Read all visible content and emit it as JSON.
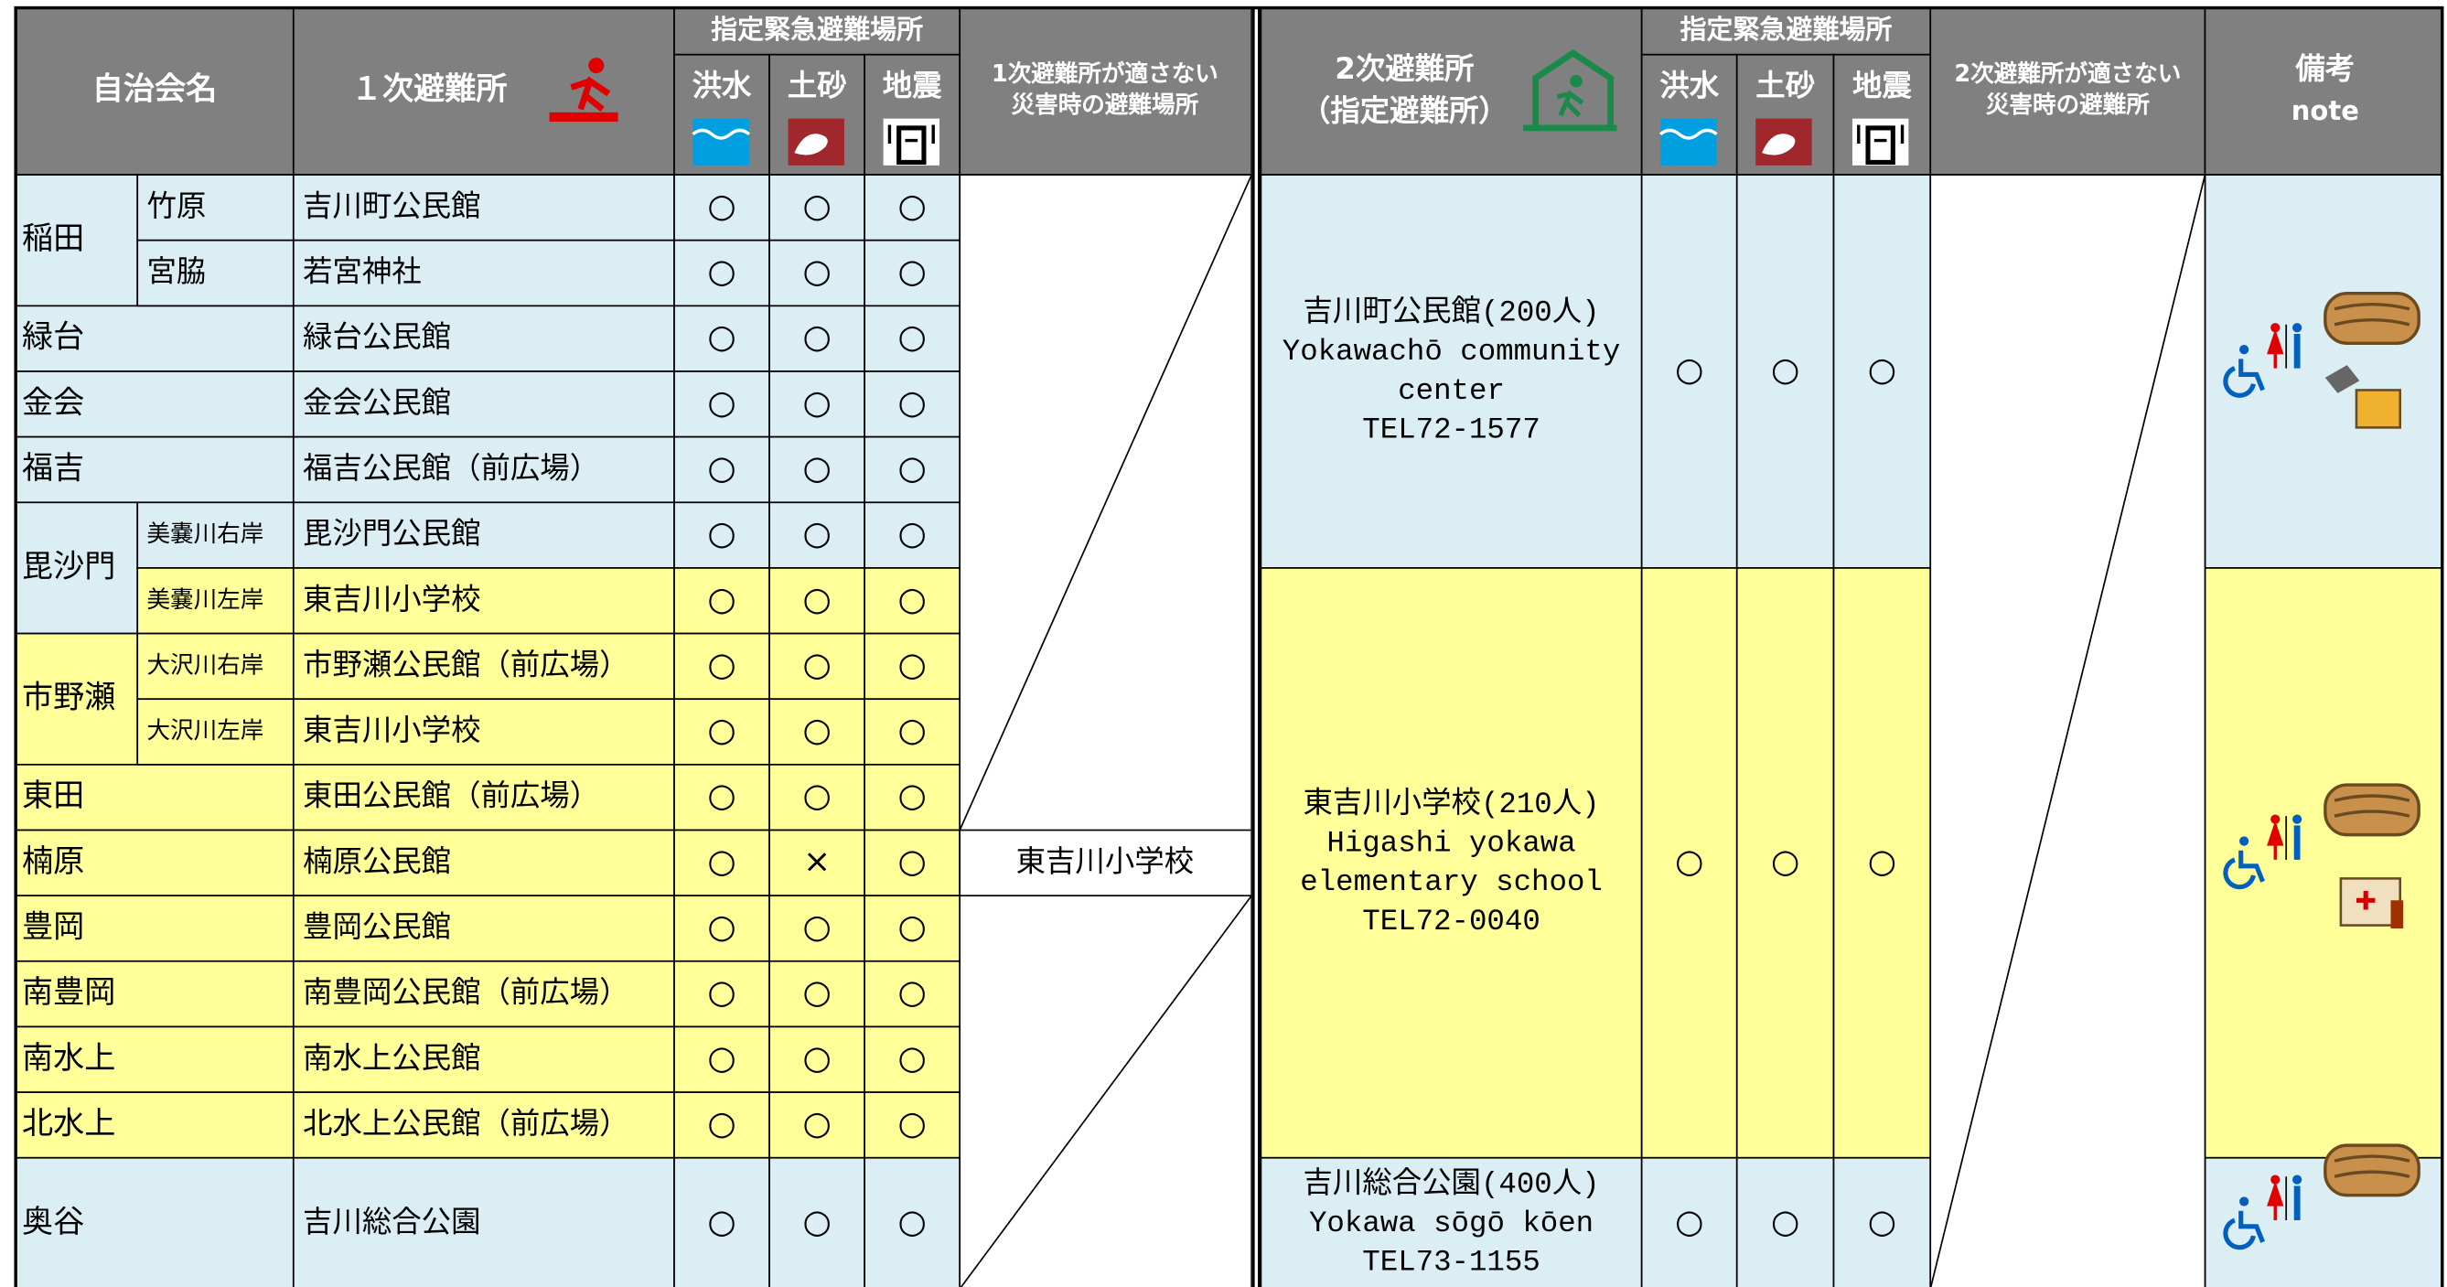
{
  "header": {
    "name": "自治会名",
    "primary": "１次避難所",
    "designated": "指定緊急避難場所",
    "hazards": [
      "洪水",
      "土砂",
      "地震"
    ],
    "primary_alt": [
      "1次避難所が適さない",
      "災害時の避難場所"
    ],
    "secondary": [
      "2次避難所",
      "（指定避難所）"
    ],
    "secondary_alt": [
      "2次避難所が適さない",
      "災害時の避難所"
    ],
    "note": [
      "備考",
      "note"
    ]
  },
  "colors": {
    "blue": "#daeef3",
    "yellow": "#ffff99",
    "header": "#808080"
  },
  "groups": [
    {
      "name": "稲田",
      "rows": [
        {
          "sub": "竹原",
          "site": "吉川町公民館",
          "marks": [
            "○",
            "○",
            "○"
          ],
          "color": "blue"
        },
        {
          "sub": "宮脇",
          "site": "若宮神社",
          "marks": [
            "○",
            "○",
            "○"
          ],
          "color": "blue"
        }
      ]
    },
    {
      "name": "緑台",
      "rows": [
        {
          "site": "緑台公民館",
          "marks": [
            "○",
            "○",
            "○"
          ],
          "color": "blue"
        }
      ]
    },
    {
      "name": "金会",
      "rows": [
        {
          "site": "金会公民館",
          "marks": [
            "○",
            "○",
            "○"
          ],
          "color": "blue"
        }
      ]
    },
    {
      "name": "福吉",
      "rows": [
        {
          "site": "福吉公民館（前広場）",
          "marks": [
            "○",
            "○",
            "○"
          ],
          "color": "blue"
        }
      ]
    },
    {
      "name": "毘沙門",
      "rows": [
        {
          "sub": "美嚢川右岸",
          "site": "毘沙門公民館",
          "marks": [
            "○",
            "○",
            "○"
          ],
          "color": "blue"
        },
        {
          "sub": "美嚢川左岸",
          "site": "東吉川小学校",
          "marks": [
            "○",
            "○",
            "○"
          ],
          "color": "yellow"
        }
      ]
    },
    {
      "name": "市野瀬",
      "rows": [
        {
          "sub": "大沢川右岸",
          "site": "市野瀬公民館（前広場）",
          "marks": [
            "○",
            "○",
            "○"
          ],
          "color": "yellow"
        },
        {
          "sub": "大沢川左岸",
          "site": "東吉川小学校",
          "marks": [
            "○",
            "○",
            "○"
          ],
          "color": "yellow"
        }
      ]
    },
    {
      "name": "東田",
      "rows": [
        {
          "site": "東田公民館（前広場）",
          "marks": [
            "○",
            "○",
            "○"
          ],
          "color": "yellow"
        }
      ]
    },
    {
      "name": "楠原",
      "rows": [
        {
          "site": "楠原公民館",
          "marks": [
            "○",
            "×",
            "○"
          ],
          "color": "yellow",
          "alt": "東吉川小学校"
        }
      ]
    },
    {
      "name": "豊岡",
      "rows": [
        {
          "site": "豊岡公民館",
          "marks": [
            "○",
            "○",
            "○"
          ],
          "color": "yellow"
        }
      ]
    },
    {
      "name": "南豊岡",
      "rows": [
        {
          "site": "南豊岡公民館（前広場）",
          "marks": [
            "○",
            "○",
            "○"
          ],
          "color": "yellow"
        }
      ]
    },
    {
      "name": "南水上",
      "rows": [
        {
          "site": "南水上公民館",
          "marks": [
            "○",
            "○",
            "○"
          ],
          "color": "yellow"
        }
      ]
    },
    {
      "name": "北水上",
      "rows": [
        {
          "site": "北水上公民館（前広場）",
          "marks": [
            "○",
            "○",
            "○"
          ],
          "color": "yellow"
        }
      ]
    },
    {
      "name": "奥谷",
      "rows": [
        {
          "site": "吉川総合公園",
          "marks": [
            "○",
            "○",
            "○"
          ],
          "color": "blue"
        }
      ]
    }
  ],
  "secondary_sites": [
    {
      "lines": [
        "吉川町公民館(200人)",
        "Yokawachō community",
        "center",
        "TEL72-1577"
      ],
      "marks": [
        "○",
        "○",
        "○"
      ]
    },
    {
      "lines": [
        "東吉川小学校(210人)",
        "Higashi yokawa",
        "elementary school",
        "TEL72-0040"
      ],
      "marks": [
        "○",
        "○",
        "○"
      ]
    },
    {
      "lines": [
        "吉川総合公園(400人)",
        "Yokawa sōgō kōen",
        "TEL73-1155"
      ],
      "marks": [
        "○",
        "○",
        "○"
      ]
    }
  ]
}
